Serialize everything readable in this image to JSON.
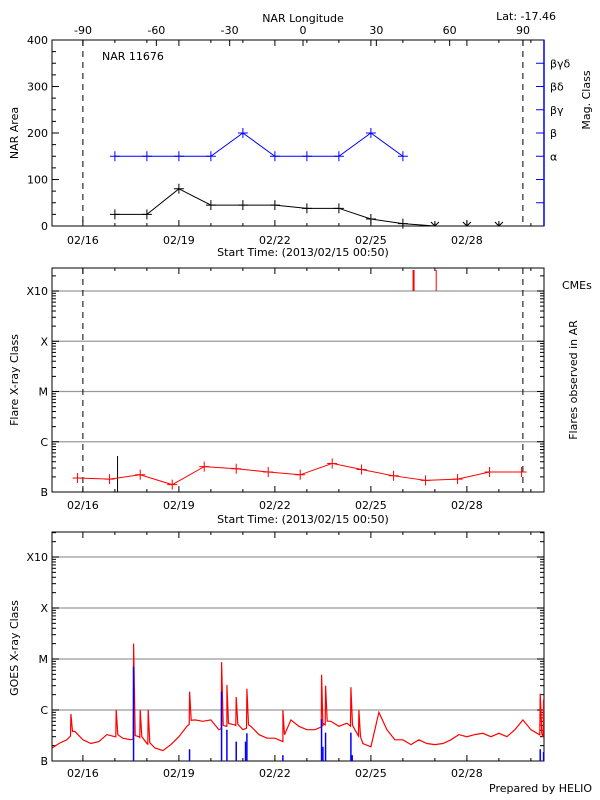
{
  "header": {
    "lat_label": "Lat: -17.46",
    "region_title": "NAR 11676",
    "footer": "Prepared by HELIO"
  },
  "colors": {
    "area": "#000000",
    "mag": "#0000ff",
    "flare": "#ff0000",
    "goes_long": "#ff0000",
    "goes_short": "#0000ff",
    "grid": "#999999"
  },
  "chart_data": [
    {
      "type": "line",
      "xlabel": "Start Time: (2013/02/15 00:50)",
      "ylabel": "NAR Area",
      "ylabel_right": "Mag. Class",
      "top_axis_title": "NAR Longitude",
      "top_ticks": [
        "-90",
        "-60",
        "-30",
        "0",
        "30",
        "60",
        "90"
      ],
      "xlim": [
        "02/15 00:50",
        "03/02 09:50"
      ],
      "x_tick_labels": [
        "02/16",
        "02/19",
        "02/22",
        "02/25",
        "02/28"
      ],
      "ylim": [
        0,
        400
      ],
      "y_tick_labels": [
        "0",
        "100",
        "200",
        "300",
        "400"
      ],
      "mag_classes": [
        "α",
        "β",
        "βγ",
        "βδ",
        "βγδ"
      ],
      "limb_times": [
        "02/16 00:00",
        "03/01 18:00"
      ],
      "area_series": {
        "times": [
          "02/17 00:00",
          "02/18 00:00",
          "02/19 00:00",
          "02/20 00:00",
          "02/21 00:00",
          "02/22 00:00",
          "02/23 00:00",
          "02/24 00:00",
          "02/25 00:00",
          "02/26 00:00",
          "02/27 00:00",
          "02/28 00:00",
          "03/01 00:00"
        ],
        "values": [
          25,
          25,
          80,
          45,
          45,
          45,
          38,
          38,
          15,
          5,
          0,
          0,
          0
        ]
      },
      "mag_series": {
        "times": [
          "02/17 00:00",
          "02/18 00:00",
          "02/19 00:00",
          "02/20 00:00",
          "02/21 00:00",
          "02/22 00:00",
          "02/23 00:00",
          "02/24 00:00",
          "02/25 00:00",
          "02/26 00:00"
        ],
        "values": [
          "α",
          "α",
          "α",
          "α",
          "β",
          "α",
          "α",
          "α",
          "β",
          "α"
        ]
      }
    },
    {
      "type": "line",
      "xlabel": "Start Time: (2013/02/15 00:50)",
      "ylabel": "Flare X-ray Class",
      "ylabel_right": "Flares observed in AR",
      "cme_label": "CMEs",
      "y_scale": "log",
      "y_tick_labels": [
        "B",
        "C",
        "M",
        "X",
        "X10"
      ],
      "x_tick_labels": [
        "02/16",
        "02/19",
        "02/22",
        "02/25",
        "02/28"
      ],
      "grid": true,
      "limb_times": [
        "02/16 00:00",
        "03/01 18:00"
      ],
      "flare_series": {
        "times": [
          "02/15 20:00",
          "02/16 20:00",
          "02/17 19:00",
          "02/18 19:00",
          "02/19 19:00",
          "02/20 19:00",
          "02/21 19:00",
          "02/22 19:00",
          "02/23 19:00",
          "02/24 17:00",
          "02/25 17:00",
          "02/26 17:00",
          "02/27 17:00",
          "02/28 17:00",
          "03/01 17:00"
        ],
        "values": [
          "B1.9",
          "B1.8",
          "B2.2",
          "B1.4",
          "B3.2",
          "B2.9",
          "B2.5",
          "B2.2",
          "B3.7",
          "B2.8",
          "B2.1",
          "B1.7",
          "B1.8",
          "B2.5",
          "B2.5"
        ]
      },
      "marker_lines": [
        {
          "time": "02/17 02:00",
          "class": "B5.2"
        }
      ],
      "cme_times": [
        "02/26 08:00",
        "02/27 01:00"
      ]
    },
    {
      "type": "line",
      "ylabel": "GOES X-ray Class",
      "y_scale": "log",
      "y_tick_labels": [
        "B",
        "C",
        "M",
        "X",
        "X10"
      ],
      "x_tick_labels": [
        "02/16",
        "02/19",
        "02/22",
        "02/25",
        "02/28"
      ],
      "grid": true,
      "long_channel": {
        "times": [
          "02/15 01:00",
          "02/15 06:00",
          "02/15 12:00",
          "02/15 18:00",
          "02/16 00:00",
          "02/16 06:00",
          "02/16 12:00",
          "02/16 18:00",
          "02/17 00:00",
          "02/17 06:00",
          "02/17 12:00",
          "02/17 18:00",
          "02/18 00:00",
          "02/18 06:00",
          "02/18 12:00",
          "02/18 18:00",
          "02/19 00:00",
          "02/19 06:00",
          "02/19 12:00",
          "02/19 18:00",
          "02/20 00:00",
          "02/20 06:00",
          "02/20 12:00",
          "02/20 18:00",
          "02/21 00:00",
          "02/21 06:00",
          "02/21 12:00",
          "02/21 18:00",
          "02/22 00:00",
          "02/22 06:00",
          "02/22 12:00",
          "02/22 18:00",
          "02/23 00:00",
          "02/23 06:00",
          "02/23 12:00",
          "02/23 18:00",
          "02/24 00:00",
          "02/24 06:00",
          "02/24 12:00",
          "02/24 18:00",
          "02/25 00:00",
          "02/25 06:00",
          "02/25 12:00",
          "02/25 18:00",
          "02/26 00:00",
          "02/26 06:00",
          "02/26 12:00",
          "02/26 18:00",
          "02/27 00:00",
          "02/27 06:00",
          "02/27 12:00",
          "02/27 18:00",
          "02/28 00:00",
          "02/28 06:00",
          "02/28 12:00",
          "02/28 18:00",
          "03/01 00:00",
          "03/01 06:00",
          "03/01 12:00",
          "03/01 18:00",
          "03/02 00:00",
          "03/02 09:00"
        ],
        "values": [
          "B1.8",
          "B2.2",
          "B2.6",
          "B3.8",
          "B2.6",
          "B2.2",
          "B2.4",
          "B3.3",
          "B3.0",
          "B2.8",
          "B2.6",
          "B3.0",
          "B2.2",
          "B1.8",
          "B1.6",
          "B2.1",
          "B3.0",
          "B4.8",
          "B6.4",
          "B6.0",
          "B6.4",
          "B4.1",
          "B4.8",
          "B5.1",
          "B4.1",
          "B4.8",
          "B3.3",
          "B2.8",
          "B2.8",
          "B2.4",
          "B6.4",
          "B4.8",
          "B4.1",
          "B4.1",
          "B4.8",
          "B6.0",
          "B4.8",
          "B5.5",
          "B4.1",
          "B2.2",
          "B1.9",
          "B9.0",
          "B4.1",
          "B2.6",
          "B2.6",
          "B2.1",
          "B2.6",
          "B2.2",
          "B2.1",
          "B2.2",
          "B2.6",
          "B3.3",
          "B3.0",
          "B3.3",
          "B3.5",
          "B3.0",
          "B3.5",
          "B3.0",
          "B4.1",
          "B6.4",
          "B4.1",
          "B3.0"
        ]
      },
      "long_channel_peaks": [
        {
          "time": "02/15 15:00",
          "class": "B8.3"
        },
        {
          "time": "02/17 01:00",
          "class": "C1.0"
        },
        {
          "time": "02/17 14:00",
          "class": "M2.0"
        },
        {
          "time": "02/17 19:00",
          "class": "C1.0"
        },
        {
          "time": "02/18 01:00",
          "class": "C1.0"
        },
        {
          "time": "02/19 08:00",
          "class": "C2.3"
        },
        {
          "time": "02/20 08:00",
          "class": "C8.7"
        },
        {
          "time": "02/20 12:00",
          "class": "C3.1"
        },
        {
          "time": "02/20 19:00",
          "class": "C1.8"
        },
        {
          "time": "02/21 03:00",
          "class": "C2.6"
        },
        {
          "time": "02/22 06:00",
          "class": "C1.0"
        },
        {
          "time": "02/23 11:00",
          "class": "C4.9"
        },
        {
          "time": "02/23 14:00",
          "class": "C3.0"
        },
        {
          "time": "02/24 09:00",
          "class": "C2.8"
        },
        {
          "time": "02/24 15:00",
          "class": "C1.0"
        },
        {
          "time": "03/02 07:00",
          "class": "C2.1"
        },
        {
          "time": "03/02 09:30",
          "class": "C1.6"
        }
      ],
      "short_channel_bars": [
        {
          "time": "02/17 14:00",
          "class": "C7.1"
        },
        {
          "time": "02/17 19:00",
          "class": "B1.0"
        },
        {
          "time": "02/19 08:00",
          "class": "B1.7"
        },
        {
          "time": "02/20 08:00",
          "class": "C2.3"
        },
        {
          "time": "02/20 12:00",
          "class": "B4.1"
        },
        {
          "time": "02/20 19:00",
          "class": "B2.4"
        },
        {
          "time": "02/21 02:00",
          "class": "B2.4"
        },
        {
          "time": "02/21 03:00",
          "class": "B3.5"
        },
        {
          "time": "02/22 06:00",
          "class": "B1.3"
        },
        {
          "time": "02/23 11:00",
          "class": "B6.6"
        },
        {
          "time": "02/23 12:00",
          "class": "B1.9"
        },
        {
          "time": "02/23 14:00",
          "class": "B3.6"
        },
        {
          "time": "02/24 09:00",
          "class": "B3.6"
        },
        {
          "time": "02/24 10:00",
          "class": "B1.3"
        },
        {
          "time": "03/02 07:00",
          "class": "B1.7"
        },
        {
          "time": "03/02 09:30",
          "class": "B1.5"
        }
      ]
    }
  ]
}
